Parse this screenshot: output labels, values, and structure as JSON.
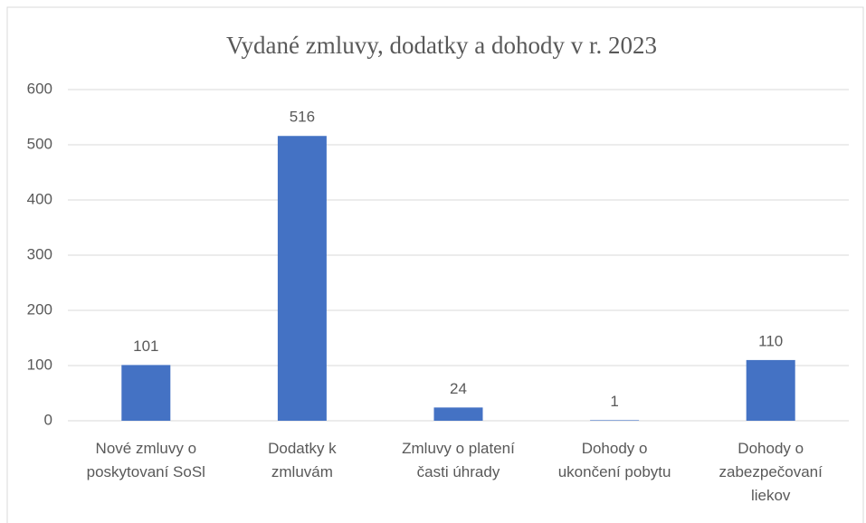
{
  "chart_data": {
    "type": "bar",
    "title": "Vydané zmluvy, dodatky a dohody v r. 2023",
    "categories": [
      "Nové zmluvy o poskytovaní SoSl",
      "Dodatky k zmluvám",
      "Zmluvy o platení časti úhrady",
      "Dohody o ukončení pobytu",
      "Dohody o zabezpečovaní liekov"
    ],
    "values": [
      101,
      516,
      24,
      1,
      110
    ],
    "color": "#4472c4",
    "ylim": [
      0,
      600
    ],
    "yticks": [
      0,
      100,
      200,
      300,
      400,
      500,
      600
    ],
    "grid": true
  }
}
